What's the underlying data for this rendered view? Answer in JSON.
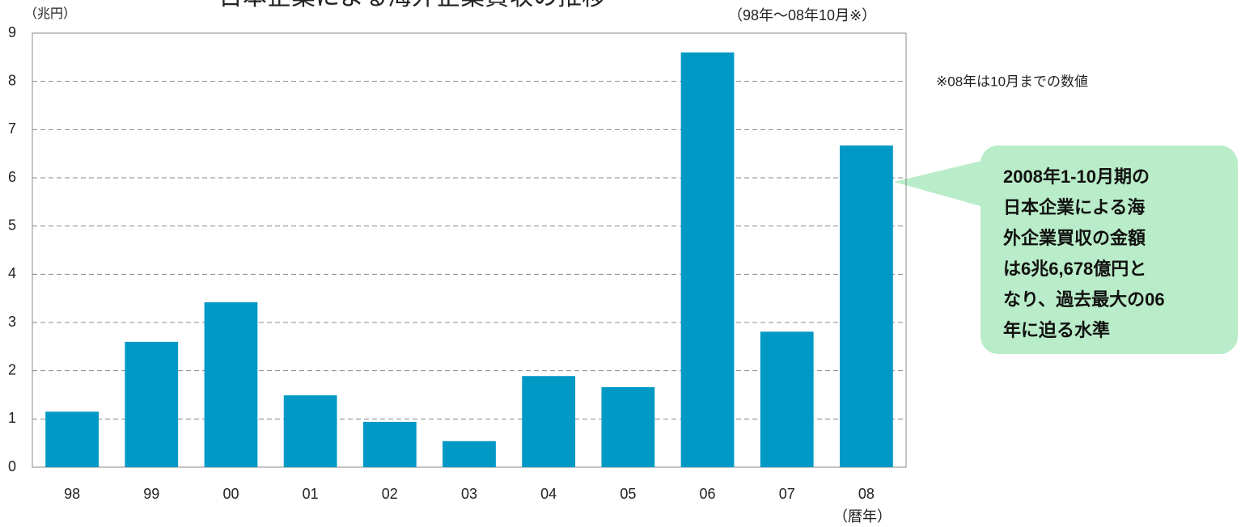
{
  "chart_data": {
    "type": "bar",
    "title": "日本企業による海外企業買収の推移",
    "subtitle": "（98年〜08年10月※）",
    "y_label": "（兆円）",
    "x_label": "（暦年）",
    "note": "※08年は10月までの数値",
    "annotation": [
      "2008年1-10月期の",
      "日本企業による海",
      "外企業買収の金額",
      "は6兆6,678億円と",
      "なり、過去最大の06",
      "年に迫る水準"
    ],
    "categories": [
      "98",
      "99",
      "00",
      "01",
      "02",
      "03",
      "04",
      "05",
      "06",
      "07",
      "08"
    ],
    "values": [
      1.15,
      2.6,
      3.42,
      1.49,
      0.94,
      0.54,
      1.89,
      1.66,
      8.6,
      2.81,
      6.67
    ],
    "color": "#0099c6",
    "ylim": [
      0,
      9
    ],
    "yticks": [
      0,
      1,
      2,
      3,
      4,
      5,
      6,
      7,
      8,
      9
    ],
    "grid": true
  }
}
